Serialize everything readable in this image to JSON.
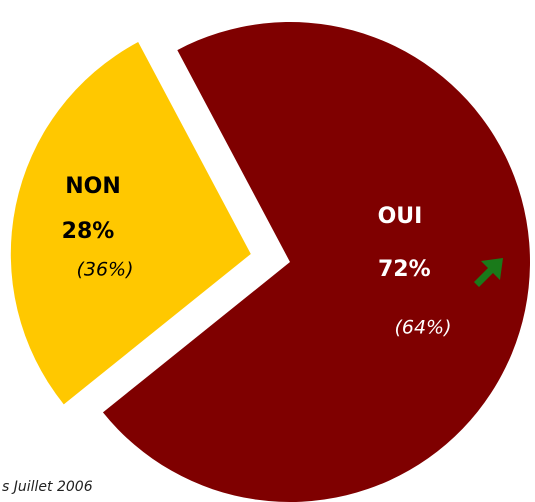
{
  "chart_data": {
    "type": "pie",
    "categories": [
      "OUI",
      "NON"
    ],
    "values": [
      72,
      28
    ],
    "value_labels": [
      "72%",
      "28%"
    ],
    "colors": [
      "#7f0000",
      "#ffc800"
    ],
    "previous_labels": [
      "(64%)",
      "(36%)"
    ],
    "footnote": "s Juillet 2006"
  }
}
